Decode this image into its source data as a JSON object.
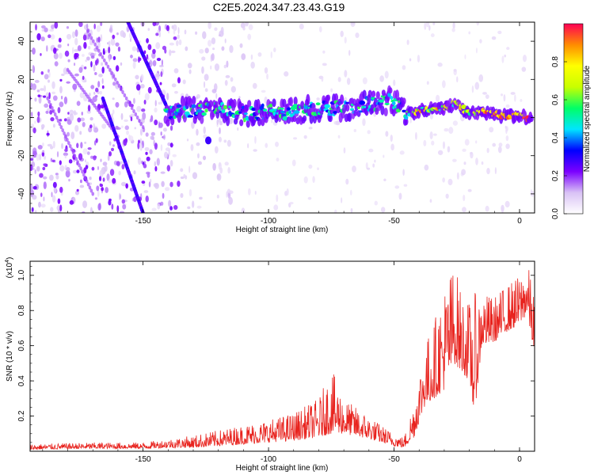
{
  "figure_title": "C2E5.2024.347.23.43.G19",
  "colors": {
    "signal": "#e8231e",
    "axis": "#000000"
  },
  "chart_data": [
    {
      "type": "heatmap",
      "title": "C2E5.2024.347.23.43.G19",
      "xlabel": "Height of straight line (km)",
      "ylabel": "Frequency (Hz)",
      "xlim": [
        -195,
        6
      ],
      "ylim": [
        -50,
        50
      ],
      "xticks": [
        "-150",
        "-100",
        "-50",
        "0"
      ],
      "yticks": [
        "-40",
        "-20",
        "0",
        "20",
        "40"
      ],
      "colorbar": {
        "label": "Normalized spectral amplitude",
        "range": [
          0,
          1
        ],
        "ticks": [
          "0.0",
          "0.2",
          "0.4",
          "0.6",
          "0.8"
        ],
        "colormap": [
          "#ffffff",
          "#d9c2f5",
          "#7b00ff",
          "#0000ff",
          "#00e5ff",
          "#00ff66",
          "#c8ff00",
          "#ffff00",
          "#ff8c00",
          "#ff0055"
        ]
      },
      "features": {
        "main_track_center": [
          [
            -141,
            2
          ],
          [
            -130,
            4
          ],
          [
            -120,
            4
          ],
          [
            -110,
            2
          ],
          [
            -100,
            3
          ],
          [
            -90,
            3
          ],
          [
            -80,
            5
          ],
          [
            -70,
            5
          ],
          [
            -60,
            7
          ],
          [
            -50,
            9
          ],
          [
            -45,
            2
          ],
          [
            -38,
            4
          ],
          [
            -30,
            5
          ],
          [
            -25,
            8
          ],
          [
            -20,
            2
          ],
          [
            -15,
            3
          ],
          [
            -10,
            2
          ],
          [
            -5,
            1
          ],
          [
            0,
            1
          ],
          [
            5,
            -1
          ]
        ],
        "descending_lines": [
          {
            "start": [
              -156,
              50
            ],
            "end": [
              -141,
              7
            ]
          },
          {
            "start": [
              -166,
              10
            ],
            "end": [
              -150,
              -50
            ]
          }
        ]
      }
    },
    {
      "type": "line",
      "xlabel": "Height of straight line (km)",
      "ylabel": "SNR (10 * v/v)",
      "yscale_label": "(x10",
      "yscale_exp": "4",
      "xlim": [
        -195,
        6
      ],
      "ylim": [
        0,
        1.08
      ],
      "xticks": [
        "-150",
        "-100",
        "-50",
        "0"
      ],
      "yticks": [
        "0.2",
        "0.4",
        "0.6",
        "0.8",
        "1.0"
      ],
      "envelope": {
        "x": [
          -195,
          -170,
          -150,
          -140,
          -130,
          -120,
          -110,
          -100,
          -90,
          -80,
          -75,
          -70,
          -60,
          -50,
          -46,
          -42,
          -38,
          -34,
          -30,
          -26,
          -23,
          -20,
          -18,
          -15,
          -10,
          -5,
          0,
          3,
          6
        ],
        "base": [
          0.01,
          0.015,
          0.015,
          0.02,
          0.02,
          0.03,
          0.04,
          0.05,
          0.06,
          0.08,
          0.1,
          0.1,
          0.07,
          0.03,
          0.02,
          0.08,
          0.25,
          0.3,
          0.35,
          0.5,
          0.45,
          0.4,
          0.2,
          0.6,
          0.62,
          0.68,
          0.72,
          0.78,
          0.55
        ],
        "peak": [
          0.04,
          0.05,
          0.05,
          0.07,
          0.09,
          0.12,
          0.15,
          0.18,
          0.22,
          0.3,
          0.47,
          0.3,
          0.2,
          0.1,
          0.08,
          0.3,
          0.6,
          0.75,
          0.95,
          1.08,
          0.9,
          0.85,
          0.9,
          0.9,
          0.88,
          0.95,
          1.0,
          1.08,
          0.9
        ]
      }
    }
  ]
}
